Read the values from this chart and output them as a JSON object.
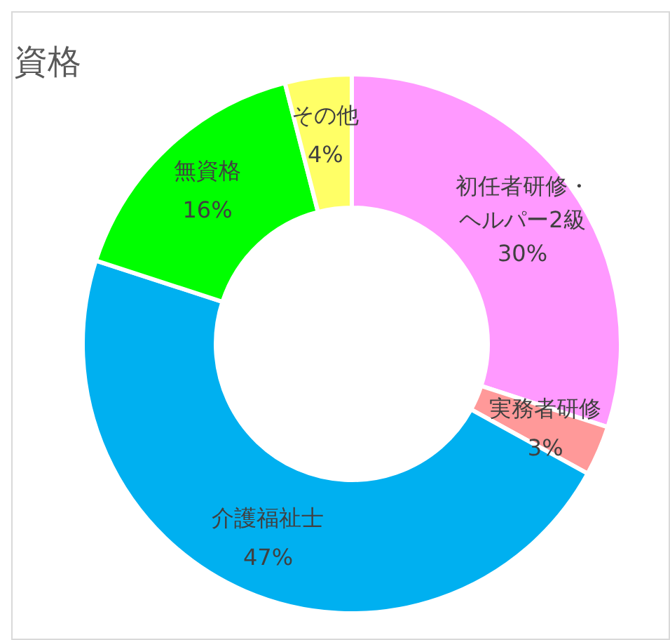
{
  "chart_data": {
    "type": "donut",
    "title": "資格",
    "categories": [
      "初任者研修・ヘルパー2級",
      "実務者研修",
      "介護福祉士",
      "無資格",
      "その他"
    ],
    "values": [
      30,
      3,
      47,
      16,
      4
    ],
    "value_labels": [
      "30%",
      "3%",
      "47%",
      "16%",
      "4%"
    ],
    "colors": [
      "#ff99ff",
      "#ff9999",
      "#00b0f0",
      "#00ff00",
      "#ffff66"
    ],
    "legend": false
  }
}
